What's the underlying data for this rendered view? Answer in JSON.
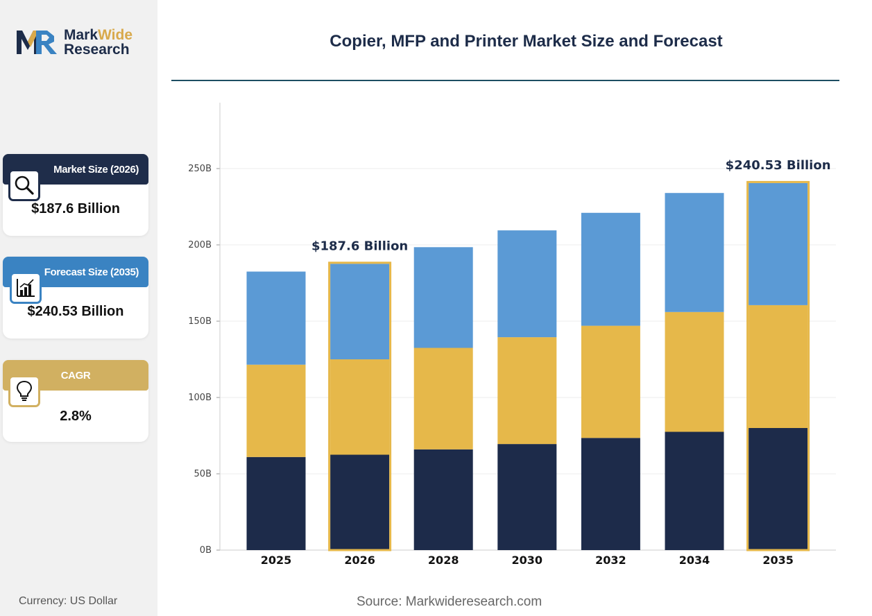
{
  "brand": {
    "name_part1": "Mark",
    "name_part2": "Wide",
    "name_line2": "Research",
    "navy": "#1d2c49",
    "gold": "#d8a94b"
  },
  "cards": [
    {
      "label": "Market Size (2026)",
      "value": "$187.6 Billion",
      "icon": "magnifier-icon",
      "color": "#1f2d4a"
    },
    {
      "label": "Forecast Size (2035)",
      "value": "$240.53 Billion",
      "icon": "bar-chart-icon",
      "color": "#3a83c2"
    },
    {
      "label": "CAGR",
      "value": "2.8%",
      "icon": "lightbulb-icon",
      "color": "#d1b061"
    }
  ],
  "currency": "Currency: US Dollar",
  "source": "Source: Markwideresearch.com",
  "chart_data": {
    "type": "bar",
    "stacked": true,
    "title": "Copier, MFP and Printer Market Size and Forecast",
    "categories": [
      "2025",
      "2026",
      "2028",
      "2030",
      "2032",
      "2034",
      "2035"
    ],
    "series": [
      {
        "color": "#1d2b4a",
        "values": [
          61,
          62.5,
          66,
          69.5,
          73.5,
          77.5,
          80
        ]
      },
      {
        "color": "#e6b84a",
        "values": [
          60.5,
          62.5,
          66.5,
          70,
          73.5,
          78.5,
          80.5
        ]
      },
      {
        "color": "#5b9ad5",
        "values": [
          61,
          62.6,
          66,
          70,
          74,
          78,
          80
        ]
      }
    ],
    "ylim": [
      0,
      295
    ],
    "yticks": [
      0,
      50,
      100,
      150,
      200,
      250
    ],
    "ytick_labels": [
      "0B",
      "50B",
      "100B",
      "150B",
      "200B",
      "250B"
    ],
    "grid": true,
    "highlighted": [
      {
        "category": "2026",
        "label": "$187.6 Billion"
      },
      {
        "category": "2035",
        "label": "$240.53 Billion"
      }
    ],
    "highlight_color": "#e6b84a"
  }
}
